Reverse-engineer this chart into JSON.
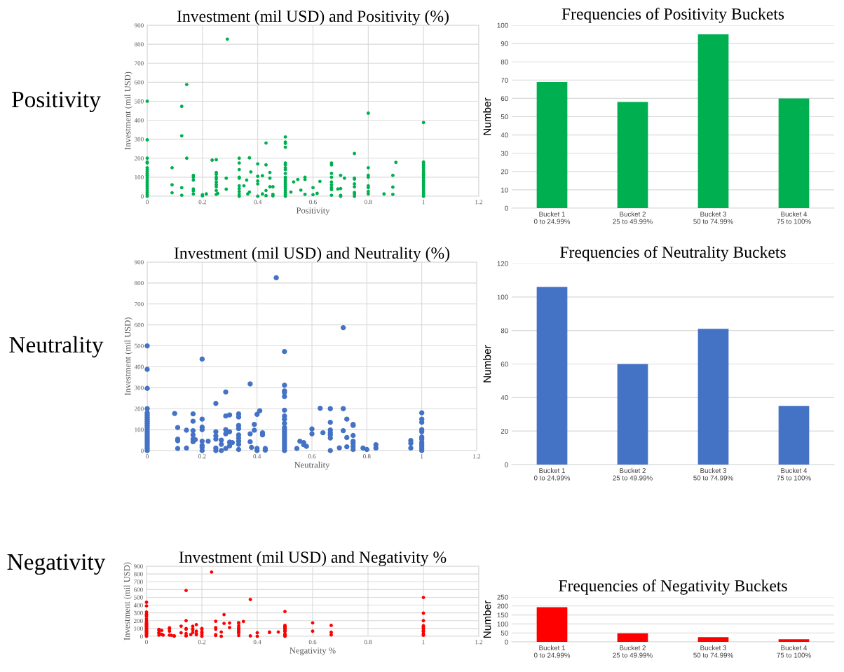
{
  "chart_data": [
    {
      "type": "scatter",
      "title": "Investment (mil USD) and Positivity (%)",
      "xlabel": "Positivity",
      "ylabel": "Investment (mil USD)",
      "annotations": [
        "Positivity"
      ],
      "marker": "circle",
      "grid": true,
      "xlim": [
        0,
        1.2
      ],
      "xticks": [
        0,
        0.2,
        0.4,
        0.6,
        0.8,
        1,
        1.2
      ],
      "ylim": [
        0,
        900
      ],
      "yticks": [
        0,
        100,
        200,
        300,
        400,
        500,
        600,
        700,
        800,
        900
      ],
      "series": [
        {
          "color": "#00b050",
          "x": [
            0,
            0,
            0,
            0,
            0,
            0,
            0,
            0,
            0,
            0,
            0,
            0,
            0,
            0,
            0,
            0,
            0,
            0,
            0,
            0,
            0,
            0.09,
            0.09,
            0.09,
            0.125,
            0.125,
            0.125,
            0.125,
            0.143,
            0.143,
            0.167,
            0.167,
            0.167,
            0.167,
            0.167,
            0.167,
            0.2,
            0.2,
            0.214,
            0.235,
            0.25,
            0.25,
            0.25,
            0.25,
            0.25,
            0.25,
            0.25,
            0.25,
            0.25,
            0.25,
            0.255,
            0.286,
            0.286,
            0.29,
            0.333,
            0.333,
            0.333,
            0.333,
            0.333,
            0.333,
            0.333,
            0.333,
            0.333,
            0.333,
            0.35,
            0.36,
            0.364,
            0.37,
            0.37,
            0.375,
            0.4,
            0.4,
            0.4,
            0.4,
            0.4,
            0.417,
            0.417,
            0.43,
            0.43,
            0.43,
            0.43,
            0.444,
            0.444,
            0.444,
            0.455,
            0.455,
            0.455,
            0.5,
            0.5,
            0.5,
            0.5,
            0.5,
            0.5,
            0.5,
            0.5,
            0.5,
            0.5,
            0.5,
            0.5,
            0.5,
            0.5,
            0.5,
            0.5,
            0.5,
            0.5,
            0.5,
            0.5,
            0.52,
            0.53,
            0.545,
            0.556,
            0.571,
            0.571,
            0.571,
            0.6,
            0.6,
            0.615,
            0.625,
            0.667,
            0.667,
            0.667,
            0.667,
            0.667,
            0.667,
            0.667,
            0.667,
            0.667,
            0.69,
            0.7,
            0.7,
            0.7,
            0.7,
            0.714,
            0.75,
            0.75,
            0.75,
            0.75,
            0.75,
            0.75,
            0.75,
            0.75,
            0.8,
            0.8,
            0.8,
            0.8,
            0.8,
            0.8,
            0.8,
            0.8,
            0.857,
            0.889,
            0.889,
            0.889,
            0.9,
            1,
            1,
            1,
            1,
            1,
            1,
            1,
            1,
            1,
            1,
            1,
            1,
            1,
            1,
            1,
            1,
            1,
            1,
            1,
            1
          ],
          "values": [
            500,
            297,
            200,
            180,
            175,
            150,
            140,
            130,
            120,
            110,
            100,
            90,
            80,
            70,
            60,
            50,
            40,
            30,
            20,
            10,
            0,
            150,
            60,
            18,
            473,
            318,
            45,
            5,
            588,
            200,
            110,
            100,
            85,
            38,
            28,
            12,
            8,
            2,
            12,
            190,
            192,
            125,
            115,
            100,
            90,
            75,
            62,
            50,
            30,
            10,
            15,
            95,
            37,
            827,
            200,
            175,
            140,
            100,
            95,
            55,
            40,
            25,
            10,
            0,
            55,
            85,
            12,
            202,
            22,
            128,
            170,
            105,
            80,
            65,
            0,
            108,
            12,
            280,
            165,
            30,
            3,
            125,
            95,
            50,
            50,
            10,
            2,
            312,
            285,
            278,
            258,
            175,
            165,
            150,
            140,
            120,
            100,
            90,
            80,
            70,
            60,
            50,
            40,
            30,
            20,
            10,
            0,
            22,
            75,
            88,
            32,
            100,
            88,
            10,
            45,
            8,
            15,
            78,
            175,
            165,
            120,
            100,
            75,
            60,
            45,
            35,
            5,
            38,
            110,
            40,
            5,
            0,
            95,
            225,
            95,
            90,
            65,
            50,
            20,
            12,
            0,
            437,
            150,
            110,
            100,
            55,
            45,
            25,
            12,
            12,
            110,
            48,
            10,
            178,
            388,
            180,
            170,
            160,
            150,
            140,
            130,
            120,
            110,
            100,
            90,
            80,
            70,
            60,
            50,
            40,
            30,
            20,
            10,
            0
          ]
        }
      ]
    },
    {
      "type": "bar",
      "title": "Frequencies of Positivity Buckets",
      "ylabel": "Number",
      "grid": "y",
      "categories": [
        "Bucket 1\n0 to 24.99%",
        "Bucket 2\n25 to 49.99%",
        "Bucket 3\n50 to 74.99%",
        "Bucket 4\n75 to 100%"
      ],
      "values": [
        69,
        58,
        95,
        60
      ],
      "color": "#00b050",
      "ylim": [
        0,
        100
      ],
      "yticks": [
        0,
        10,
        20,
        30,
        40,
        50,
        60,
        70,
        80,
        90,
        100
      ]
    },
    {
      "type": "scatter",
      "title": "Investment (mil USD) and Neutrality (%)",
      "xlabel": "Neutrality",
      "ylabel": "Investment (mil USD)",
      "annotations": [
        "Neutrality"
      ],
      "marker": "circle",
      "grid": true,
      "xlim": [
        0,
        1.2
      ],
      "xticks": [
        0,
        0.2,
        0.4,
        0.6,
        0.8,
        1,
        1.2
      ],
      "ylim": [
        0,
        900
      ],
      "yticks": [
        0,
        100,
        200,
        300,
        400,
        500,
        600,
        700,
        800,
        900
      ],
      "series": [
        {
          "color": "#4472c4",
          "x": [
            0,
            0,
            0,
            0,
            0,
            0,
            0,
            0,
            0,
            0,
            0,
            0,
            0,
            0,
            0,
            0,
            0,
            0,
            0,
            0,
            0,
            0,
            0,
            0.1,
            0.111,
            0.111,
            0.111,
            0.111,
            0.143,
            0.143,
            0.167,
            0.167,
            0.167,
            0.167,
            0.167,
            0.167,
            0.175,
            0.2,
            0.2,
            0.2,
            0.2,
            0.2,
            0.2,
            0.2,
            0.2,
            0.222,
            0.25,
            0.25,
            0.25,
            0.25,
            0.25,
            0.25,
            0.27,
            0.27,
            0.27,
            0.286,
            0.286,
            0.286,
            0.286,
            0.286,
            0.3,
            0.3,
            0.3,
            0.3,
            0.31,
            0.333,
            0.333,
            0.333,
            0.333,
            0.333,
            0.333,
            0.333,
            0.333,
            0.333,
            0.375,
            0.375,
            0.375,
            0.38,
            0.39,
            0.39,
            0.4,
            0.4,
            0.4,
            0.41,
            0.42,
            0.42,
            0.43,
            0.43,
            0.47,
            0.5,
            0.5,
            0.5,
            0.5,
            0.5,
            0.5,
            0.5,
            0.5,
            0.5,
            0.5,
            0.5,
            0.5,
            0.5,
            0.5,
            0.5,
            0.5,
            0.5,
            0.5,
            0.5,
            0.5,
            0.5,
            0.545,
            0.556,
            0.57,
            0.57,
            0.58,
            0.6,
            0.6,
            0.63,
            0.64,
            0.667,
            0.667,
            0.667,
            0.667,
            0.667,
            0.667,
            0.667,
            0.7,
            0.714,
            0.714,
            0.714,
            0.727,
            0.727,
            0.727,
            0.75,
            0.75,
            0.75,
            0.75,
            0.75,
            0.75,
            0.75,
            0.786,
            0.8,
            0.833,
            0.833,
            0.96,
            0.96,
            0.96,
            1,
            1,
            1,
            1,
            1,
            1,
            1,
            1,
            1,
            1,
            1,
            1
          ],
          "values": [
            500,
            388,
            297,
            200,
            180,
            170,
            160,
            150,
            140,
            130,
            120,
            110,
            100,
            90,
            80,
            70,
            60,
            50,
            40,
            30,
            20,
            10,
            0,
            177,
            110,
            55,
            47,
            10,
            97,
            12,
            175,
            140,
            95,
            75,
            55,
            42,
            52,
            437,
            150,
            112,
            100,
            45,
            25,
            15,
            0,
            45,
            225,
            90,
            70,
            55,
            12,
            0,
            50,
            30,
            0,
            280,
            165,
            100,
            80,
            10,
            170,
            90,
            40,
            22,
            38,
            175,
            160,
            120,
            105,
            75,
            60,
            45,
            30,
            5,
            318,
            80,
            42,
            15,
            125,
            97,
            173,
            10,
            0,
            190,
            85,
            75,
            10,
            2,
            825,
            473,
            312,
            285,
            278,
            258,
            193,
            165,
            150,
            130,
            110,
            100,
            90,
            80,
            70,
            60,
            50,
            40,
            30,
            20,
            10,
            0,
            10,
            45,
            38,
            28,
            20,
            103,
            80,
            202,
            85,
            200,
            135,
            98,
            85,
            75,
            60,
            0,
            13,
            587,
            200,
            95,
            150,
            62,
            18,
            125,
            120,
            72,
            45,
            35,
            20,
            5,
            12,
            5,
            28,
            12,
            48,
            35,
            12,
            180,
            150,
            135,
            100,
            90,
            65,
            55,
            40,
            30,
            20,
            10,
            0
          ]
        }
      ]
    },
    {
      "type": "bar",
      "title": "Frequencies of Neutrality Buckets",
      "ylabel": "Number",
      "grid": "y",
      "categories": [
        "Bucket 1\n0 to 24.99%",
        "Bucket 2\n25 to 49.99%",
        "Bucket 3\n50 to 74.99%",
        "Bucket 4\n75 to 100%"
      ],
      "values": [
        106,
        60,
        81,
        35
      ],
      "color": "#4472c4",
      "ylim": [
        0,
        120
      ],
      "yticks": [
        0,
        20,
        40,
        60,
        80,
        100,
        120
      ]
    },
    {
      "type": "scatter",
      "title": "Investment (mil USD) and Negativity %",
      "xlabel": "Negativity %",
      "ylabel": "Investment (mil USD)",
      "annotations": [
        "Negativity"
      ],
      "marker": "circle",
      "grid": true,
      "xlim": [
        0,
        1.2
      ],
      "xticks": [
        0,
        0.2,
        0.4,
        0.6,
        0.8,
        1,
        1.2
      ],
      "ylim": [
        0,
        900
      ],
      "yticks": [
        0,
        100,
        200,
        300,
        400,
        500,
        600,
        700,
        800,
        900
      ],
      "series": [
        {
          "color": "#ff0000",
          "x": [
            0,
            0,
            0,
            0,
            0,
            0,
            0,
            0,
            0,
            0,
            0,
            0,
            0,
            0,
            0,
            0,
            0,
            0,
            0,
            0,
            0,
            0,
            0,
            0,
            0,
            0,
            0,
            0.045,
            0.045,
            0.045,
            0.045,
            0.045,
            0.055,
            0.055,
            0.06,
            0.083,
            0.083,
            0.083,
            0.083,
            0.09,
            0.1,
            0.1,
            0.125,
            0.125,
            0.143,
            0.143,
            0.143,
            0.143,
            0.143,
            0.143,
            0.143,
            0.16,
            0.167,
            0.167,
            0.167,
            0.167,
            0.18,
            0.18,
            0.18,
            0.18,
            0.2,
            0.2,
            0.2,
            0.2,
            0.2,
            0.2,
            0.235,
            0.25,
            0.25,
            0.25,
            0.25,
            0.25,
            0.27,
            0.27,
            0.28,
            0.28,
            0.3,
            0.3,
            0.333,
            0.333,
            0.333,
            0.333,
            0.333,
            0.333,
            0.333,
            0.333,
            0.333,
            0.333,
            0.35,
            0.375,
            0.375,
            0.4,
            0.4,
            0.444,
            0.444,
            0.476,
            0.5,
            0.5,
            0.5,
            0.5,
            0.5,
            0.5,
            0.5,
            0.5,
            0.5,
            0.5,
            0.5,
            0.5,
            0.5,
            0.6,
            0.6,
            0.667,
            0.667,
            0.667,
            1,
            1,
            1,
            1,
            1,
            1,
            1,
            1,
            1,
            1,
            1,
            1
          ],
          "values": [
            437,
            390,
            312,
            285,
            275,
            258,
            225,
            200,
            180,
            170,
            160,
            150,
            140,
            130,
            120,
            110,
            100,
            90,
            80,
            70,
            60,
            50,
            40,
            30,
            20,
            10,
            0,
            88,
            78,
            50,
            40,
            15,
            75,
            25,
            15,
            108,
            95,
            65,
            15,
            12,
            5,
            2,
            130,
            45,
            588,
            200,
            100,
            90,
            35,
            10,
            3,
            22,
            128,
            95,
            85,
            50,
            150,
            65,
            35,
            20,
            100,
            90,
            55,
            50,
            25,
            0,
            825,
            193,
            110,
            90,
            20,
            10,
            55,
            0,
            278,
            165,
            170,
            112,
            175,
            170,
            135,
            110,
            95,
            80,
            65,
            50,
            40,
            10,
            190,
            473,
            5,
            45,
            0,
            55,
            48,
            55,
            318,
            140,
            130,
            120,
            110,
            100,
            80,
            70,
            60,
            30,
            20,
            10,
            0,
            172,
            65,
            140,
            52,
            18,
            498,
            297,
            200,
            135,
            125,
            110,
            95,
            70,
            60,
            30,
            20,
            12
          ]
        }
      ]
    },
    {
      "type": "bar",
      "title": "Frequencies of Negativity Buckets",
      "ylabel": "Number",
      "grid": "y",
      "categories": [
        "Bucket 1\n0 to 24.99%",
        "Bucket 2\n25 to 49.99%",
        "Bucket 3\n50 to 74.99%",
        "Bucket 4\n75 to 100%"
      ],
      "values": [
        193,
        48,
        26,
        15
      ],
      "color": "#ff0000",
      "ylim": [
        0,
        250
      ],
      "yticks": [
        0,
        50,
        100,
        150,
        200,
        250
      ]
    }
  ]
}
